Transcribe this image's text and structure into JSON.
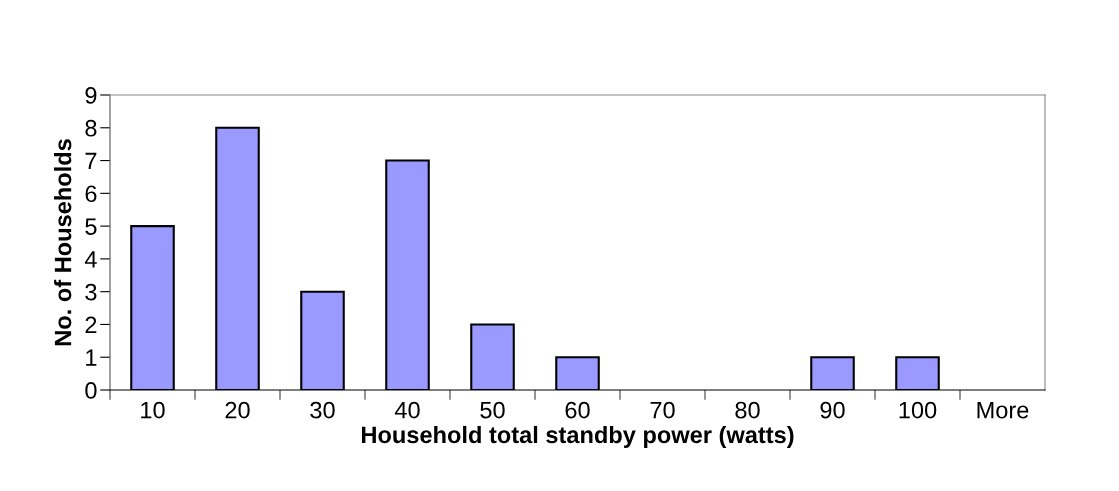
{
  "chart_data": {
    "type": "bar",
    "xlabel": "Household total standby power (watts)",
    "ylabel": "No. of Households",
    "categories": [
      "10",
      "20",
      "30",
      "40",
      "50",
      "60",
      "70",
      "80",
      "90",
      "100",
      "More"
    ],
    "values": [
      5,
      8,
      3,
      7,
      2,
      1,
      0,
      0,
      1,
      1,
      0
    ],
    "color": "#9999ff",
    "ylim": [
      0,
      9
    ],
    "yticks": [
      0,
      1,
      2,
      3,
      4,
      5,
      6,
      7,
      8,
      9
    ],
    "grid": false
  }
}
